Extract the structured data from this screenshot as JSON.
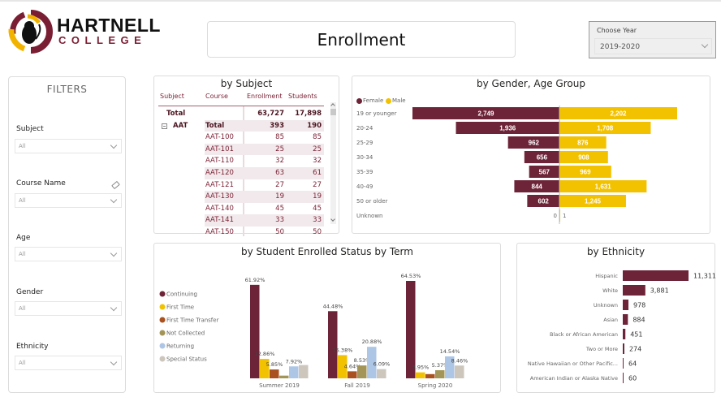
{
  "logo": {
    "line1": "HARTNELL",
    "line2": "COLLEGE"
  },
  "title": "Enrollment",
  "year_slicer": {
    "label": "Choose Year",
    "value": "2019-2020"
  },
  "filters": {
    "title": "FILTERS",
    "items": [
      {
        "label": "Subject",
        "value": "All"
      },
      {
        "label": "Course Name",
        "value": "All",
        "has_eraser": true
      },
      {
        "label": "Age",
        "value": "All"
      },
      {
        "label": "Gender",
        "value": "All"
      },
      {
        "label": "Ethnicity",
        "value": "All"
      }
    ]
  },
  "colors": {
    "maroon": "#6d2338",
    "gold": "#f2c200",
    "rust": "#a9511f",
    "olive": "#a39557",
    "lightblue": "#adc6e6",
    "beige": "#cdc6bd"
  },
  "chart_data": [
    {
      "type": "table",
      "title": "by Subject",
      "columns": [
        "Subject",
        "Course",
        "Enrollment",
        "Students"
      ],
      "rows": [
        {
          "subject": "Total",
          "course": "",
          "enrollment": "63,727",
          "students": "17,898",
          "bold": true
        },
        {
          "subject": "AAT",
          "course": "Total",
          "enrollment": "393",
          "students": "190",
          "bold": true,
          "expandable": true
        },
        {
          "subject": "",
          "course": "AAT-100",
          "enrollment": "85",
          "students": "85"
        },
        {
          "subject": "",
          "course": "AAT-101",
          "enrollment": "25",
          "students": "25"
        },
        {
          "subject": "",
          "course": "AAT-110",
          "enrollment": "32",
          "students": "32"
        },
        {
          "subject": "",
          "course": "AAT-120",
          "enrollment": "63",
          "students": "61"
        },
        {
          "subject": "",
          "course": "AAT-121",
          "enrollment": "27",
          "students": "27"
        },
        {
          "subject": "",
          "course": "AAT-130",
          "enrollment": "19",
          "students": "19"
        },
        {
          "subject": "",
          "course": "AAT-140",
          "enrollment": "45",
          "students": "45"
        },
        {
          "subject": "",
          "course": "AAT-141",
          "enrollment": "33",
          "students": "33"
        },
        {
          "subject": "",
          "course": "AAT-150",
          "enrollment": "50",
          "students": "50"
        }
      ]
    },
    {
      "type": "bar",
      "subtype": "diverging-horizontal",
      "title": "by Gender, Age Group",
      "legend": [
        "Female",
        "Male"
      ],
      "legend_position": "top-left",
      "categories": [
        "19 or younger",
        "20-24",
        "25-29",
        "30-34",
        "35-39",
        "40-49",
        "50 or older",
        "Unknown"
      ],
      "series": [
        {
          "name": "Female",
          "values": [
            2749,
            1936,
            962,
            656,
            567,
            844,
            602,
            0
          ],
          "labels": [
            "2,749",
            "1,936",
            "962",
            "656",
            "567",
            "844",
            "602",
            "0"
          ]
        },
        {
          "name": "Male",
          "values": [
            2202,
            1708,
            876,
            908,
            969,
            1631,
            1245,
            1
          ],
          "labels": [
            "2,202",
            "1,708",
            "876",
            "908",
            "969",
            "1,631",
            "1,245",
            "1"
          ]
        }
      ],
      "xlim": [
        -3000,
        3000
      ]
    },
    {
      "type": "bar",
      "title": "by Student Enrolled Status by Term",
      "legend_position": "left",
      "categories": [
        "Summer 2019",
        "Fall 2019",
        "Spring 2020"
      ],
      "series": [
        {
          "name": "Continuing",
          "values": [
            61.92,
            44.48,
            64.53
          ],
          "labels": [
            "61.92%",
            "44.48%",
            "64.53%"
          ]
        },
        {
          "name": "First Time",
          "values": [
            12.86,
            15.38,
            3.95
          ],
          "labels": [
            "12.86%",
            "15.38%",
            "3.95%"
          ]
        },
        {
          "name": "First Time Transfer",
          "values": [
            5.85,
            4.64,
            2.8
          ],
          "labels": [
            "5.85%",
            "4.64%",
            ""
          ]
        },
        {
          "name": "Not Collected",
          "values": [
            1.8,
            8.53,
            5.37
          ],
          "labels": [
            "",
            "8.53%",
            "5.37%"
          ]
        },
        {
          "name": "Returning",
          "values": [
            7.92,
            20.88,
            14.54
          ],
          "labels": [
            "7.92%",
            "20.88%",
            "14.54%"
          ]
        },
        {
          "name": "Special Status",
          "values": [
            8.8,
            6.09,
            8.46
          ],
          "labels": [
            "",
            "6.09%",
            "8.46%"
          ]
        }
      ],
      "ylim": [
        0,
        70
      ],
      "unit": "%"
    },
    {
      "type": "bar",
      "subtype": "horizontal",
      "title": "by Ethnicity",
      "categories": [
        "Hispanic",
        "White",
        "Unknown",
        "Asian",
        "Black or African American",
        "Two or More",
        "Native Hawaiian or Other Pacific...",
        "American Indian or Alaska Native"
      ],
      "values": [
        11311,
        3881,
        978,
        884,
        451,
        274,
        64,
        60
      ],
      "labels": [
        "11,311",
        "3,881",
        "978",
        "884",
        "451",
        "274",
        "64",
        "60"
      ],
      "xlim": [
        0,
        11311
      ]
    }
  ]
}
